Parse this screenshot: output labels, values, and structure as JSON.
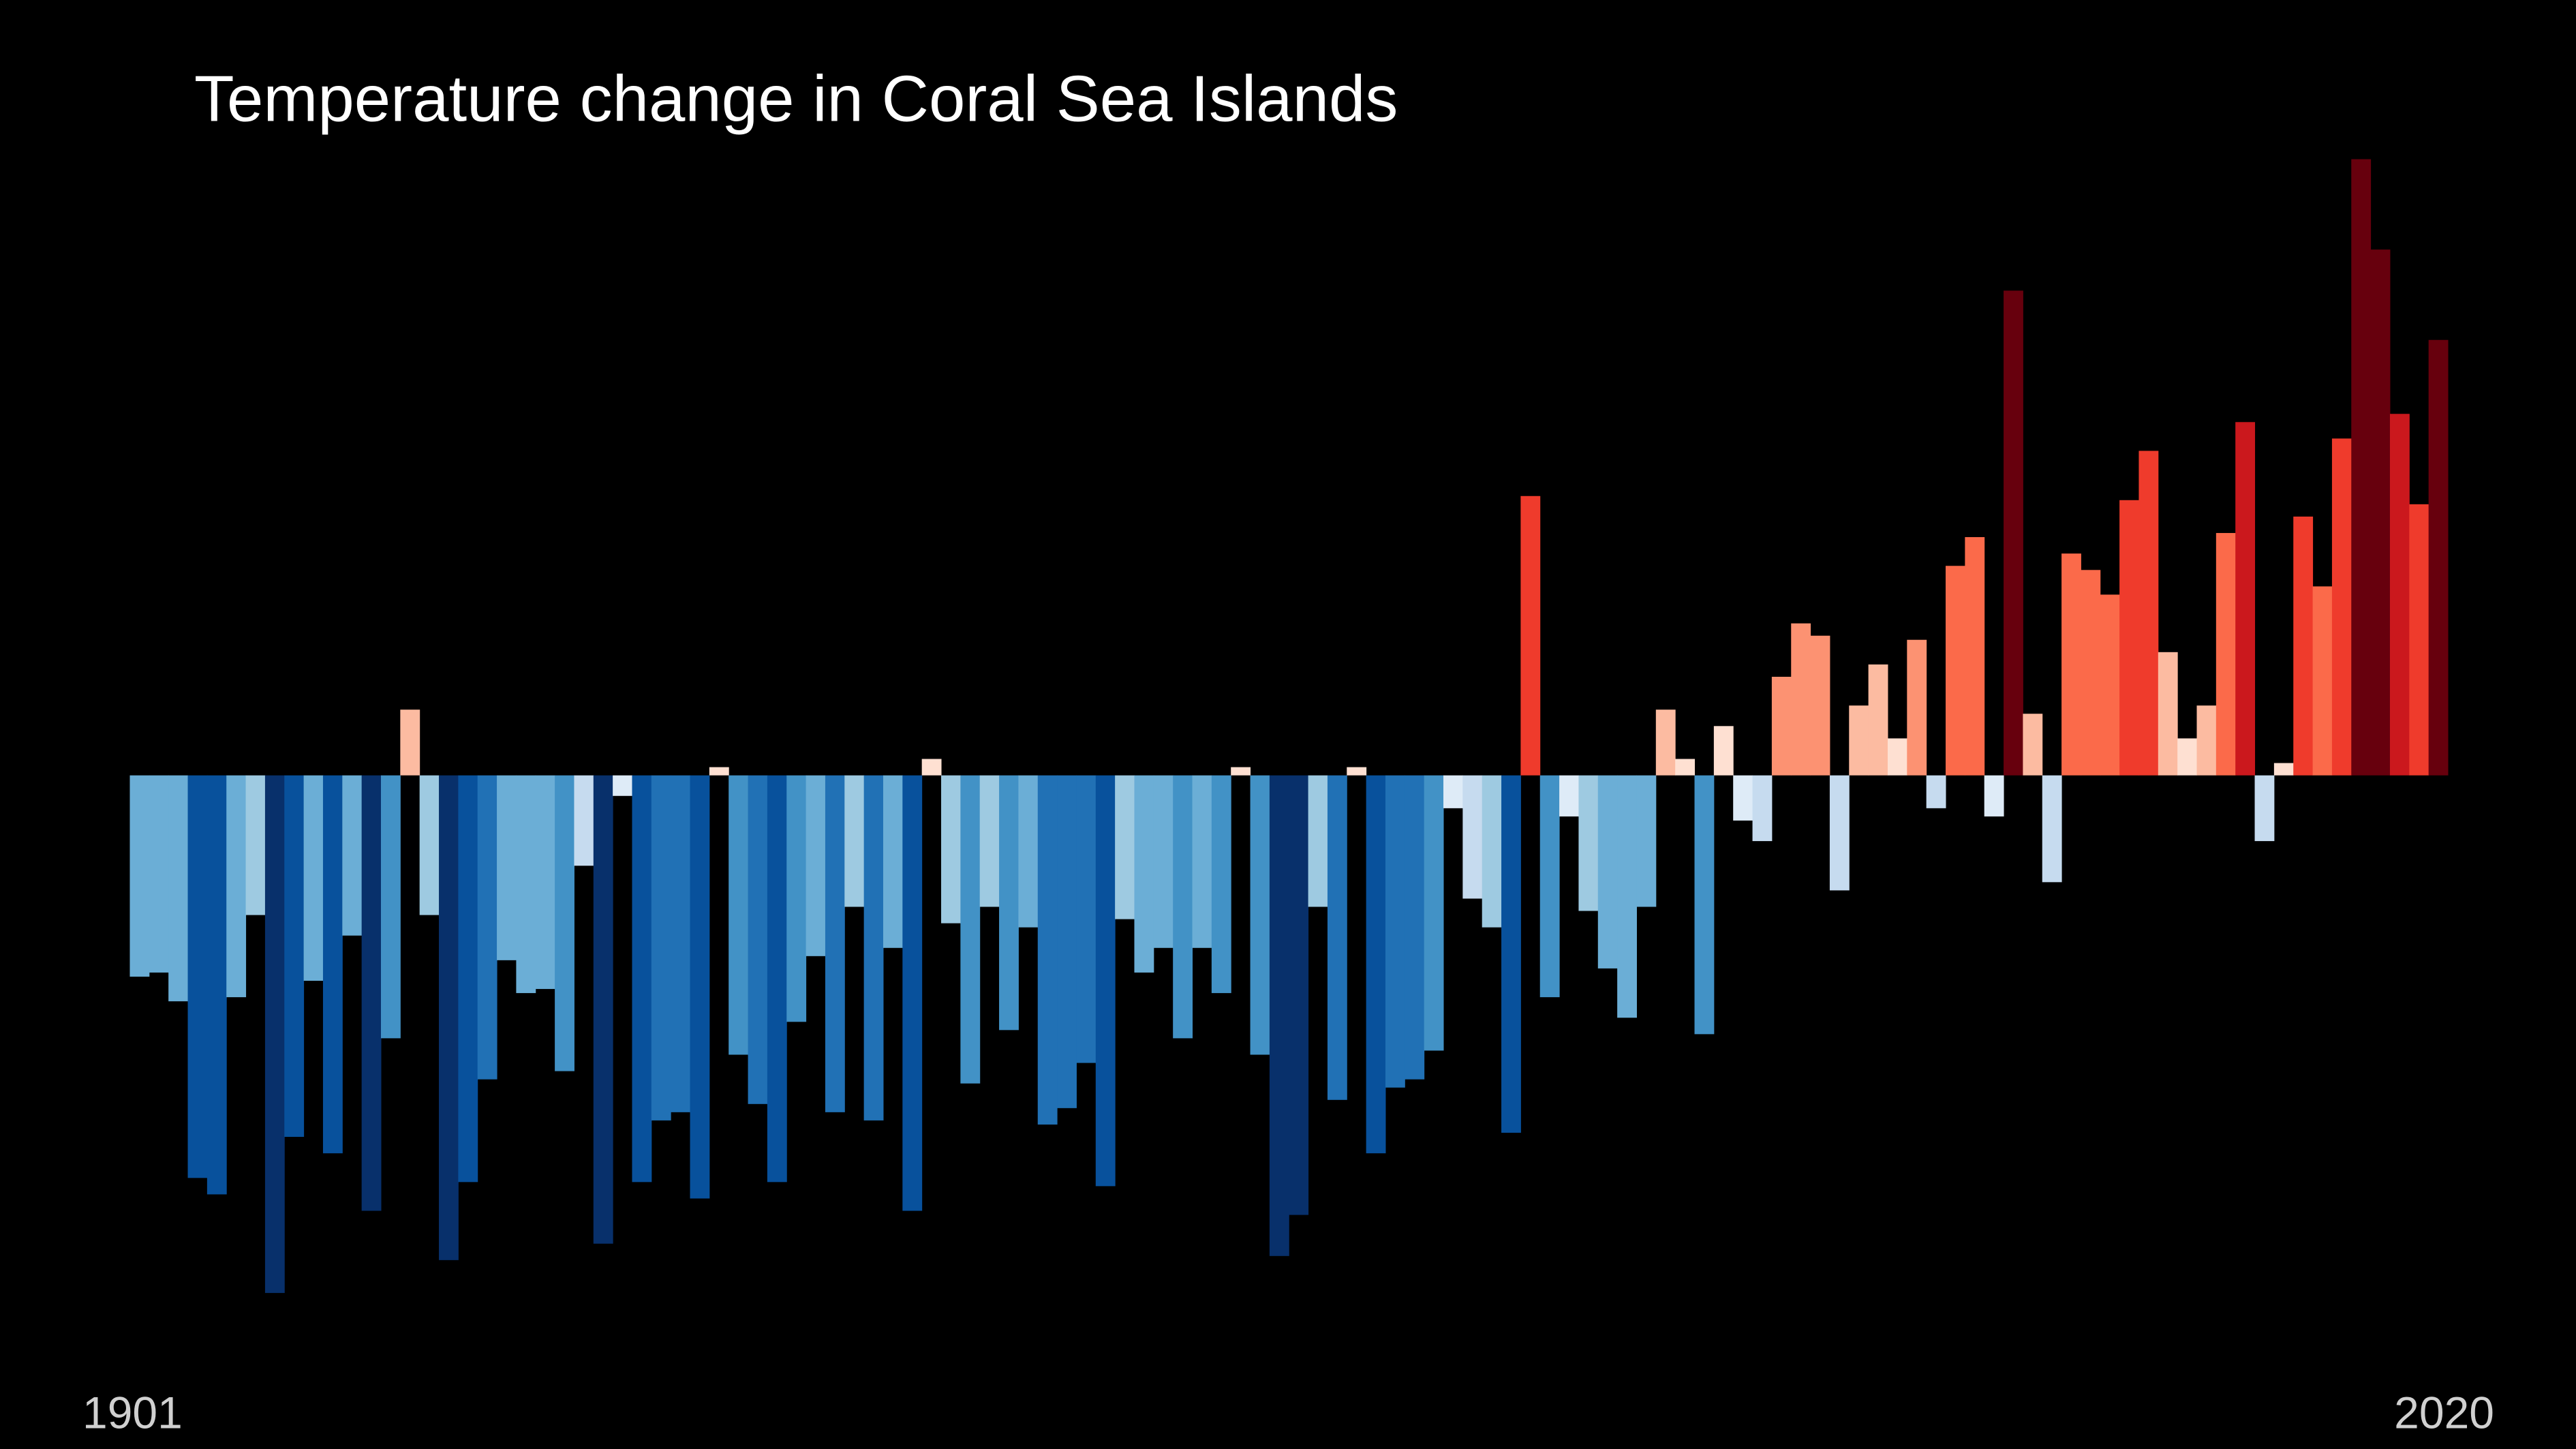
{
  "chart_data": {
    "type": "bar",
    "title": "Temperature change in Coral Sea Islands",
    "categories": [
      "1901",
      null,
      null,
      null,
      null,
      null,
      null,
      null,
      null,
      null,
      null,
      null,
      null,
      null,
      null,
      null,
      null,
      null,
      null,
      null,
      null,
      null,
      null,
      null,
      null,
      null,
      null,
      null,
      null,
      null,
      null,
      null,
      null,
      null,
      null,
      null,
      null,
      null,
      null,
      null,
      null,
      null,
      null,
      null,
      null,
      null,
      null,
      null,
      null,
      null,
      null,
      null,
      null,
      null,
      null,
      null,
      null,
      null,
      null,
      null,
      null,
      null,
      null,
      null,
      null,
      null,
      null,
      null,
      null,
      null,
      null,
      null,
      null,
      null,
      null,
      null,
      null,
      null,
      null,
      null,
      null,
      null,
      null,
      null,
      null,
      null,
      null,
      null,
      null,
      null,
      null,
      null,
      null,
      null,
      null,
      null,
      null,
      null,
      null,
      null,
      null,
      null,
      null,
      null,
      null,
      null,
      null,
      null,
      null,
      null,
      null,
      null,
      null,
      null,
      null,
      null,
      null,
      null,
      null,
      "2020"
    ],
    "values": [
      -0.49,
      -0.48,
      -0.55,
      -0.98,
      -1.02,
      -0.54,
      -0.34,
      -1.26,
      -0.88,
      -0.5,
      -0.92,
      -0.39,
      -1.06,
      -0.64,
      0.16,
      -0.34,
      -1.18,
      -0.99,
      -0.74,
      -0.45,
      -0.53,
      -0.52,
      -0.72,
      -0.22,
      -1.14,
      -0.05,
      -0.99,
      -0.84,
      -0.82,
      -1.03,
      0.02,
      -0.68,
      -0.8,
      -0.99,
      -0.6,
      -0.44,
      -0.82,
      -0.32,
      -0.84,
      -0.42,
      -1.06,
      0.04,
      -0.36,
      -0.75,
      -0.32,
      -0.62,
      -0.37,
      -0.85,
      -0.81,
      -0.7,
      -1.0,
      -0.35,
      -0.48,
      -0.42,
      -0.64,
      -0.42,
      -0.53,
      0.02,
      -0.68,
      -1.17,
      -1.07,
      -0.32,
      -0.79,
      0.02,
      -0.92,
      -0.76,
      -0.74,
      -0.67,
      -0.08,
      -0.3,
      -0.37,
      -0.87,
      0.68,
      -0.54,
      -0.1,
      -0.33,
      -0.47,
      -0.59,
      -0.32,
      0.16,
      0.04,
      -0.63,
      0.12,
      -0.11,
      -0.16,
      0.24,
      0.37,
      0.34,
      -0.28,
      0.17,
      0.27,
      0.09,
      0.33,
      -0.08,
      0.51,
      0.58,
      -0.1,
      1.18,
      0.15,
      -0.26,
      0.54,
      0.5,
      0.44,
      0.67,
      0.79,
      0.3,
      0.09,
      0.17,
      0.59,
      0.86,
      -0.16,
      0.03,
      0.63,
      0.46,
      0.82,
      1.5,
      1.28,
      0.88,
      0.66,
      1.06
    ],
    "colors": [
      "#6baed6",
      "#6baed6",
      "#6baed6",
      "#08519c",
      "#08519c",
      "#6baed6",
      "#9ecae1",
      "#08306b",
      "#08519c",
      "#6baed6",
      "#08519c",
      "#6baed6",
      "#08306b",
      "#4292c6",
      "#fcbba1",
      "#9ecae1",
      "#08306b",
      "#08519c",
      "#2171b5",
      "#6baed6",
      "#6baed6",
      "#6baed6",
      "#4292c6",
      "#c6dbef",
      "#08306b",
      "#deebf7",
      "#08519c",
      "#2171b5",
      "#2171b5",
      "#08519c",
      "#fee0d2",
      "#4292c6",
      "#2171b5",
      "#08519c",
      "#4292c6",
      "#6baed6",
      "#2171b5",
      "#9ecae1",
      "#2171b5",
      "#6baed6",
      "#08519c",
      "#fee0d2",
      "#9ecae1",
      "#4292c6",
      "#9ecae1",
      "#4292c6",
      "#6baed6",
      "#2171b5",
      "#2171b5",
      "#2171b5",
      "#08519c",
      "#9ecae1",
      "#6baed6",
      "#6baed6",
      "#4292c6",
      "#6baed6",
      "#4292c6",
      "#fee0d2",
      "#4292c6",
      "#08306b",
      "#08306b",
      "#9ecae1",
      "#2171b5",
      "#fee0d2",
      "#08519c",
      "#2171b5",
      "#2171b5",
      "#4292c6",
      "#deebf7",
      "#c6dbef",
      "#9ecae1",
      "#08519c",
      "#ef3b2c",
      "#4292c6",
      "#deebf7",
      "#9ecae1",
      "#6baed6",
      "#6baed6",
      "#6baed6",
      "#fcbba1",
      "#fee0d2",
      "#4292c6",
      "#fee0d2",
      "#deebf7",
      "#c6dbef",
      "#fc9272",
      "#fc9272",
      "#fc9272",
      "#c6dbef",
      "#fcbba1",
      "#fcbba1",
      "#fee0d2",
      "#fc9272",
      "#c6dbef",
      "#fb6a4a",
      "#fb6a4a",
      "#deebf7",
      "#67000d",
      "#fcbba1",
      "#c6dbef",
      "#fb6a4a",
      "#fb6a4a",
      "#fb6a4a",
      "#ef3b2c",
      "#ef3b2c",
      "#fcbba1",
      "#fee0d2",
      "#fcbba1",
      "#fb6a4a",
      "#cb181d",
      "#c6dbef",
      "#fee0d2",
      "#ef3b2c",
      "#fb6a4a",
      "#ef3b2c",
      "#67000d",
      "#67000d",
      "#cb181d",
      "#ef3b2c",
      "#67000d"
    ],
    "ylim": [
      -1.6,
      1.7
    ]
  }
}
